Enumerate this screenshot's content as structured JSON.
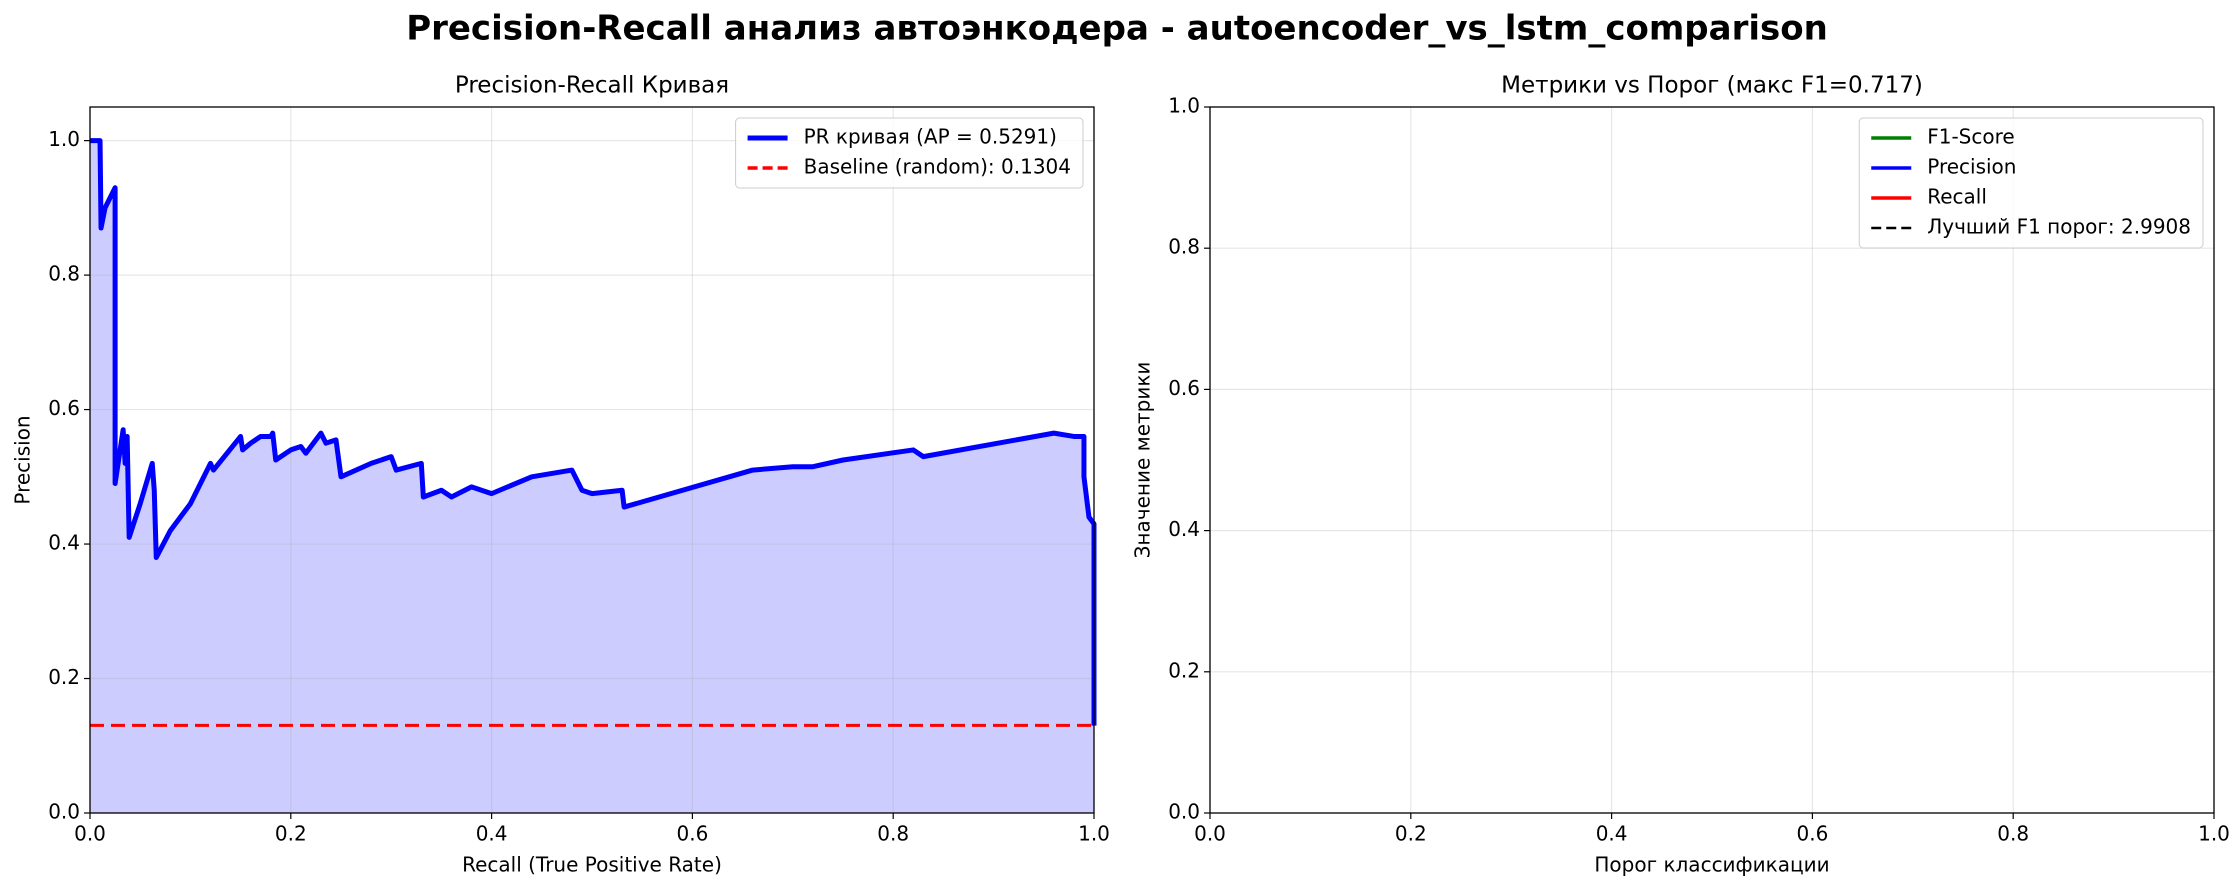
{
  "title": "Precision-Recall анализ автоэнкодера - autoencoder_vs_lstm_comparison",
  "chart_data": [
    {
      "type": "line",
      "title": "Precision-Recall Кривая",
      "x_label": "Recall (True Positive Rate)",
      "y_label": "Precision",
      "xlim": [
        0,
        1
      ],
      "ylim": [
        0,
        1.05
      ],
      "xticks": [
        {
          "value": 0,
          "label": "0.0"
        },
        0.2,
        0.4,
        0.6,
        0.8,
        {
          "value": 1,
          "label": "1.0"
        }
      ],
      "yticks": [
        {
          "value": 0,
          "label": "0.0"
        },
        0.2,
        0.4,
        0.6,
        0.8,
        {
          "value": 1,
          "label": "1.0"
        }
      ],
      "grid": true,
      "legend": "upper right",
      "x": [
        0,
        0.01,
        0.011,
        0.015,
        0.025,
        0.025,
        0.03,
        0.033,
        0.035,
        0.037,
        0.039,
        0.05,
        0.06,
        0.062,
        0.064,
        0.066,
        0.08,
        0.1,
        0.12,
        0.123,
        0.15,
        0.152,
        0.16,
        0.17,
        0.18,
        0.182,
        0.185,
        0.2,
        0.21,
        0.215,
        0.23,
        0.235,
        0.245,
        0.25,
        0.28,
        0.3,
        0.305,
        0.33,
        0.332,
        0.35,
        0.36,
        0.38,
        0.4,
        0.44,
        0.48,
        0.49,
        0.5,
        0.53,
        0.532,
        0.66,
        0.7,
        0.72,
        0.75,
        0.82,
        0.83,
        0.96,
        0.98,
        0.99,
        0.99,
        0.995,
        1.0,
        1.0
      ],
      "series": [
        {
          "name": "PR кривая (AP = 0.5291)",
          "color": "#0000ff",
          "fill": "#ccccff",
          "values": [
            1.0,
            1.0,
            0.87,
            0.9,
            0.93,
            0.49,
            0.54,
            0.57,
            0.52,
            0.56,
            0.41,
            0.46,
            0.51,
            0.52,
            0.48,
            0.38,
            0.42,
            0.46,
            0.52,
            0.51,
            0.56,
            0.54,
            0.55,
            0.56,
            0.56,
            0.565,
            0.525,
            0.54,
            0.545,
            0.535,
            0.565,
            0.55,
            0.555,
            0.5,
            0.52,
            0.53,
            0.51,
            0.52,
            0.47,
            0.48,
            0.47,
            0.485,
            0.475,
            0.5,
            0.51,
            0.48,
            0.475,
            0.48,
            0.455,
            0.51,
            0.515,
            0.515,
            0.525,
            0.54,
            0.53,
            0.565,
            0.56,
            0.56,
            0.5,
            0.44,
            0.43,
            0.13
          ]
        }
      ],
      "hlines": [
        {
          "name": "Baseline (random): 0.1304",
          "value": 0.1304,
          "color": "#ff0000"
        }
      ]
    },
    {
      "type": "line",
      "title": "Метрики vs Порог (макс F1=0.717)",
      "x_label": "Порог классификации",
      "y_label": "Значение метрики",
      "xlim": [
        0,
        1
      ],
      "ylim": [
        0,
        1
      ],
      "xticks": [
        {
          "value": 0,
          "label": "0.0"
        },
        0.2,
        0.4,
        0.6,
        0.8,
        {
          "value": 1,
          "label": "1.0"
        }
      ],
      "yticks": [
        {
          "value": 0,
          "label": "0.0"
        },
        0.2,
        0.4,
        0.6,
        0.8,
        {
          "value": 1,
          "label": "1.0"
        }
      ],
      "grid": true,
      "legend": "upper right",
      "x": [],
      "series": [
        {
          "name": "F1-Score",
          "color": "#008000",
          "values": []
        },
        {
          "name": "Precision",
          "color": "#0000ff",
          "values": []
        },
        {
          "name": "Recall",
          "color": "#ff0000",
          "values": []
        }
      ],
      "vlines": [
        {
          "name": "Лучший F1 порог: 2.9908",
          "color": "#000000"
        }
      ]
    }
  ]
}
